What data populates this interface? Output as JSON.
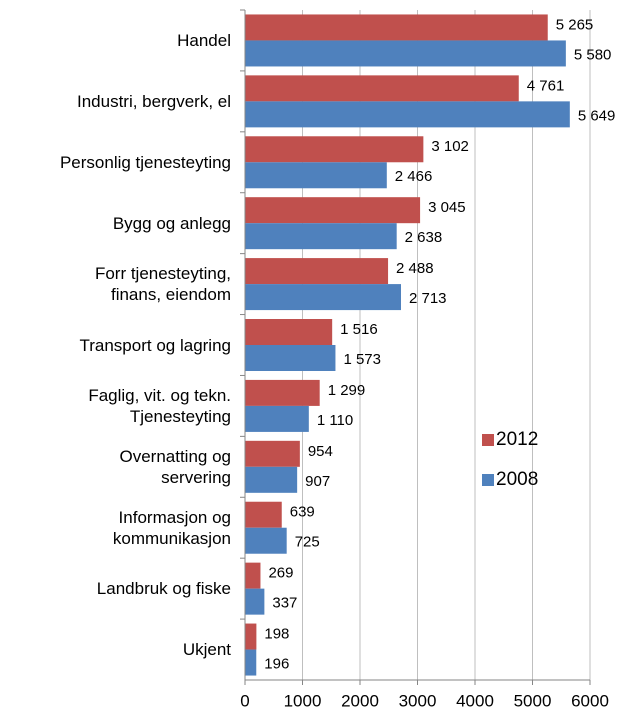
{
  "chart_data": {
    "type": "bar",
    "orientation": "horizontal",
    "categories": [
      "Handel",
      "Industri, bergverk, el",
      "Personlig tjenesteyting",
      "Bygg og anlegg",
      "Forr tjenesteyting,\nfinans, eiendom",
      "Transport og lagring",
      "Faglig, vit. og tekn.\nTjenesteyting",
      "Overnatting og\nservering",
      "Informasjon og\nkommunikasjon",
      "Landbruk og fiske",
      "Ukjent"
    ],
    "series": [
      {
        "name": "2012",
        "color": "#c0504d",
        "values": [
          5265,
          4761,
          3102,
          3045,
          2488,
          1516,
          1299,
          954,
          639,
          269,
          198
        ],
        "value_labels": [
          "5 265",
          "4 761",
          "3 102",
          "3 045",
          "2 488",
          "1 516",
          "1 299",
          "954",
          "639",
          "269",
          "198"
        ]
      },
      {
        "name": "2008",
        "color": "#4f81bd",
        "values": [
          5580,
          5649,
          2466,
          2638,
          2713,
          1573,
          1110,
          907,
          725,
          337,
          196
        ],
        "value_labels": [
          "5 580",
          "5 649",
          "2 466",
          "2 638",
          "2 713",
          "1 573",
          "1 110",
          "907",
          "725",
          "337",
          "196"
        ]
      }
    ],
    "xlim": [
      0,
      6000
    ],
    "xticks": [
      0,
      1000,
      2000,
      3000,
      4000,
      5000,
      6000
    ],
    "grid": true,
    "legend": "right"
  }
}
